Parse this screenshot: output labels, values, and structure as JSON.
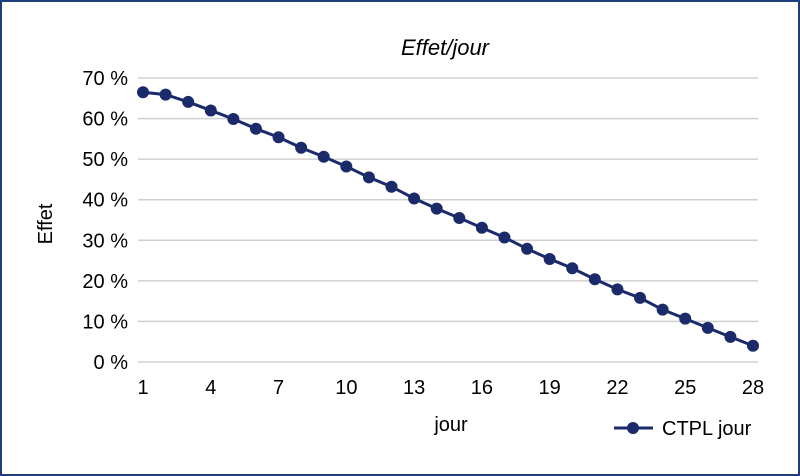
{
  "chart_data": {
    "type": "line",
    "title": "Effet/jour",
    "xlabel": "jour",
    "ylabel": "Effet",
    "x": [
      1,
      2,
      3,
      4,
      5,
      6,
      7,
      8,
      9,
      10,
      11,
      12,
      13,
      14,
      15,
      16,
      17,
      18,
      19,
      20,
      21,
      22,
      23,
      24,
      25,
      26,
      27,
      28
    ],
    "x_ticks": [
      1,
      4,
      7,
      10,
      13,
      16,
      19,
      22,
      25,
      28
    ],
    "x_tick_labels": [
      "1",
      "4",
      "7",
      "10",
      "13",
      "16",
      "19",
      "22",
      "25",
      "28"
    ],
    "xlim": [
      1,
      28
    ],
    "ylim": [
      0,
      70
    ],
    "y_ticks": [
      0,
      10,
      20,
      30,
      40,
      50,
      60,
      70
    ],
    "y_tick_labels": [
      "0 %",
      "10 %",
      "20 %",
      "30 %",
      "40 %",
      "50 %",
      "60 %",
      "70 %"
    ],
    "grid": "horizontal",
    "legend_position": "bottom-right",
    "series": [
      {
        "name": "CTPL jour",
        "color": "#1b2a6b",
        "marker": "circle",
        "values": [
          66.5,
          65.9,
          64.1,
          62.0,
          59.9,
          57.5,
          55.4,
          52.8,
          50.6,
          48.2,
          45.5,
          43.2,
          40.3,
          37.8,
          35.5,
          33.1,
          30.7,
          27.9,
          25.4,
          23.1,
          20.4,
          17.9,
          15.8,
          12.9,
          10.7,
          8.4,
          6.2,
          4.0
        ]
      }
    ]
  }
}
